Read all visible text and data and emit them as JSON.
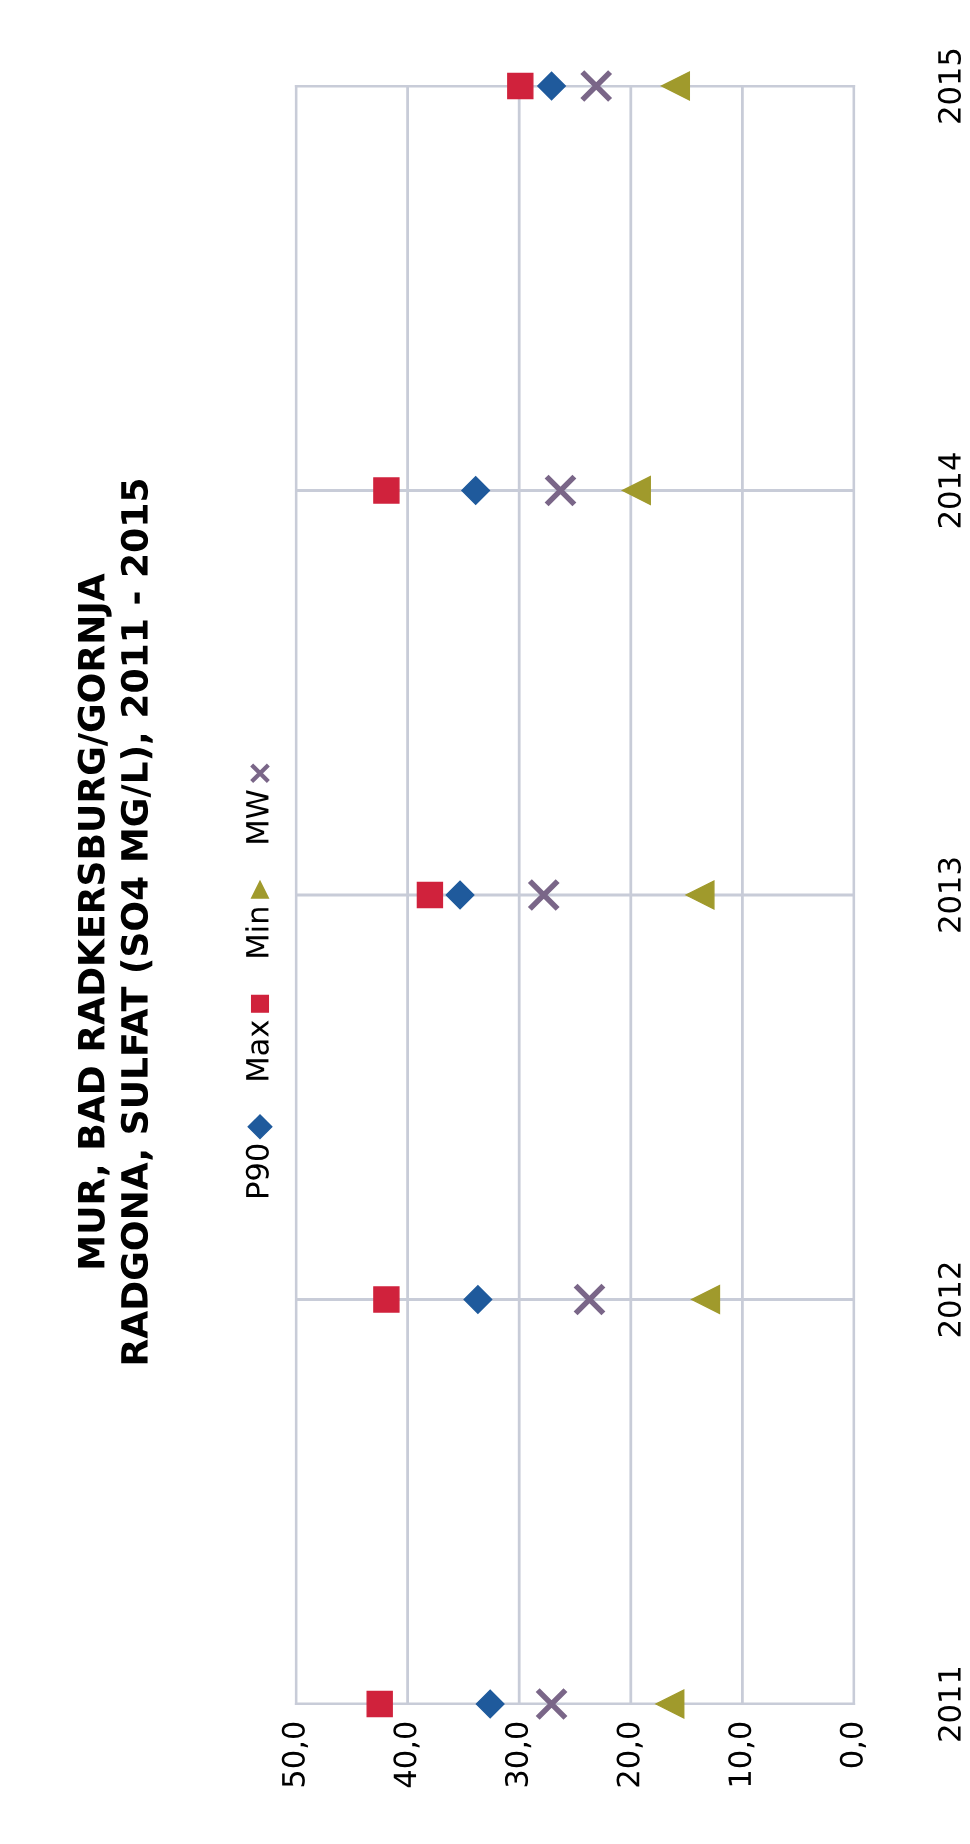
{
  "chart_data": {
    "type": "scatter",
    "title": "MUR, BAD RADKERSBURG/GORNJA\nRADGONA, SULFAT (SO4 MG/L), 2011 - 2015",
    "orientation": "horizontal",
    "categories": [
      "2015",
      "2014",
      "2013",
      "2012",
      "2011"
    ],
    "series": [
      {
        "name": "P90",
        "color": "#1f5a9c",
        "marker": "diamond",
        "values": [
          27.1,
          33.9,
          35.3,
          33.7,
          32.6
        ]
      },
      {
        "name": "Max",
        "color": "#d0223c",
        "marker": "square",
        "values": [
          29.9,
          41.9,
          38.0,
          41.9,
          42.5
        ]
      },
      {
        "name": "Min",
        "color": "#a09a2c",
        "marker": "triangle",
        "values": [
          16.0,
          19.5,
          13.8,
          13.3,
          16.5
        ]
      },
      {
        "name": "MW",
        "color": "#7a6688",
        "marker": "cross",
        "values": [
          23.1,
          26.3,
          27.8,
          23.7,
          27.1
        ]
      }
    ],
    "xlim": [
      50,
      0
    ],
    "xticks": [
      {
        "value": 50,
        "label": "50,0"
      },
      {
        "value": 40,
        "label": "40,0"
      },
      {
        "value": 30,
        "label": "30,0"
      },
      {
        "value": 20,
        "label": "20,0"
      },
      {
        "value": 10,
        "label": "10,0"
      },
      {
        "value": 0,
        "label": "0,0"
      }
    ],
    "grid": true,
    "legend": "left"
  }
}
